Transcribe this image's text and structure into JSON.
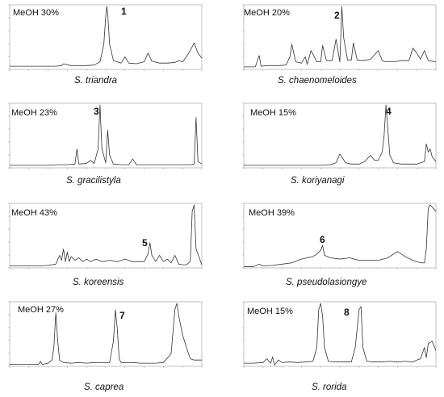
{
  "chart_data": [
    {
      "type": "line",
      "method_label": "MeOH 30%",
      "peak_label": "1",
      "peak_label_x": 0.5,
      "species": "S. triandra",
      "x": [
        0,
        0.04,
        0.08,
        0.12,
        0.16,
        0.2,
        0.24,
        0.27,
        0.28,
        0.32,
        0.36,
        0.4,
        0.44,
        0.47,
        0.49,
        0.5,
        0.505,
        0.51,
        0.52,
        0.54,
        0.58,
        0.6,
        0.62,
        0.66,
        0.7,
        0.72,
        0.74,
        0.78,
        0.82,
        0.86,
        0.88,
        0.9,
        0.92,
        0.94,
        0.96,
        0.98,
        1.0
      ],
      "y": [
        0.05,
        0.05,
        0.05,
        0.05,
        0.05,
        0.05,
        0.05,
        0.06,
        0.09,
        0.06,
        0.06,
        0.06,
        0.07,
        0.12,
        0.4,
        0.85,
        1.0,
        0.9,
        0.4,
        0.14,
        0.1,
        0.2,
        0.1,
        0.09,
        0.12,
        0.26,
        0.13,
        0.1,
        0.1,
        0.11,
        0.14,
        0.12,
        0.2,
        0.3,
        0.42,
        0.26,
        0.18
      ]
    },
    {
      "type": "line",
      "method_label": "MeOH 20%",
      "peak_label": "2",
      "peak_label_x": 0.51,
      "species": "S. chaenomeloides",
      "x": [
        0,
        0.06,
        0.08,
        0.09,
        0.12,
        0.18,
        0.22,
        0.24,
        0.25,
        0.27,
        0.3,
        0.32,
        0.33,
        0.35,
        0.38,
        0.4,
        0.41,
        0.43,
        0.46,
        0.48,
        0.5,
        0.51,
        0.52,
        0.54,
        0.56,
        0.57,
        0.59,
        0.62,
        0.66,
        0.7,
        0.72,
        0.74,
        0.78,
        0.82,
        0.86,
        0.88,
        0.9,
        0.92,
        0.94,
        0.96,
        1.0
      ],
      "y": [
        0.04,
        0.04,
        0.22,
        0.05,
        0.06,
        0.06,
        0.07,
        0.2,
        0.4,
        0.12,
        0.1,
        0.2,
        0.08,
        0.3,
        0.12,
        0.12,
        0.38,
        0.14,
        0.14,
        0.48,
        0.12,
        1.0,
        0.5,
        0.15,
        0.15,
        0.42,
        0.15,
        0.14,
        0.16,
        0.3,
        0.14,
        0.12,
        0.12,
        0.14,
        0.14,
        0.34,
        0.26,
        0.16,
        0.3,
        0.14,
        0.12
      ]
    },
    {
      "type": "line",
      "method_label": "MeOH 23%",
      "peak_label": "3",
      "peak_label_x": 0.47,
      "species": "S. gracilistyla",
      "x": [
        0,
        0.05,
        0.1,
        0.15,
        0.2,
        0.25,
        0.3,
        0.34,
        0.35,
        0.36,
        0.4,
        0.42,
        0.44,
        0.46,
        0.47,
        0.48,
        0.5,
        0.51,
        0.52,
        0.54,
        0.58,
        0.62,
        0.64,
        0.66,
        0.7,
        0.74,
        0.8,
        0.86,
        0.9,
        0.94,
        0.96,
        0.97,
        0.98,
        1.0
      ],
      "y": [
        0.04,
        0.04,
        0.04,
        0.04,
        0.04,
        0.05,
        0.05,
        0.06,
        0.3,
        0.06,
        0.07,
        0.12,
        0.07,
        0.3,
        1.0,
        0.3,
        0.08,
        0.6,
        0.2,
        0.06,
        0.05,
        0.05,
        0.14,
        0.05,
        0.05,
        0.05,
        0.05,
        0.05,
        0.05,
        0.05,
        0.06,
        0.8,
        0.1,
        0.06
      ]
    },
    {
      "type": "line",
      "method_label": "MeOH 15%",
      "peak_label": "4",
      "peak_label_x": 0.74,
      "species": "S. koriyanagi",
      "x": [
        0,
        0.1,
        0.2,
        0.3,
        0.4,
        0.45,
        0.48,
        0.5,
        0.53,
        0.56,
        0.6,
        0.63,
        0.66,
        0.68,
        0.7,
        0.72,
        0.73,
        0.74,
        0.75,
        0.76,
        0.78,
        0.82,
        0.86,
        0.9,
        0.94,
        0.95,
        0.96,
        0.97,
        0.98,
        1.0
      ],
      "y": [
        0.04,
        0.04,
        0.04,
        0.04,
        0.04,
        0.05,
        0.08,
        0.22,
        0.08,
        0.06,
        0.06,
        0.1,
        0.2,
        0.12,
        0.12,
        0.25,
        0.5,
        1.0,
        0.6,
        0.2,
        0.08,
        0.06,
        0.06,
        0.06,
        0.1,
        0.38,
        0.25,
        0.3,
        0.18,
        0.1
      ]
    },
    {
      "type": "line",
      "method_label": "MeOH 43%",
      "peak_label": "5",
      "peak_label_x": 0.73,
      "species": "S. koreensis",
      "x": [
        0,
        0.05,
        0.1,
        0.15,
        0.2,
        0.24,
        0.26,
        0.27,
        0.28,
        0.29,
        0.3,
        0.31,
        0.32,
        0.34,
        0.36,
        0.38,
        0.4,
        0.42,
        0.45,
        0.48,
        0.52,
        0.56,
        0.6,
        0.64,
        0.68,
        0.7,
        0.72,
        0.73,
        0.74,
        0.76,
        0.78,
        0.8,
        0.82,
        0.84,
        0.86,
        0.88,
        0.9,
        0.92,
        0.94,
        0.95,
        0.96,
        0.97,
        1.0
      ],
      "y": [
        0.03,
        0.03,
        0.03,
        0.03,
        0.04,
        0.06,
        0.2,
        0.12,
        0.3,
        0.1,
        0.25,
        0.1,
        0.18,
        0.12,
        0.16,
        0.1,
        0.14,
        0.1,
        0.14,
        0.1,
        0.12,
        0.1,
        0.14,
        0.1,
        0.1,
        0.1,
        0.22,
        0.4,
        0.2,
        0.1,
        0.2,
        0.1,
        0.14,
        0.08,
        0.2,
        0.06,
        0.05,
        0.05,
        0.1,
        0.9,
        1.0,
        0.3,
        0.05
      ]
    },
    {
      "type": "line",
      "method_label": "MeOH 39%",
      "peak_label": "6",
      "peak_label_x": 0.4,
      "species": "S. pseudolasiongye",
      "x": [
        0,
        0.05,
        0.08,
        0.1,
        0.15,
        0.2,
        0.25,
        0.3,
        0.33,
        0.36,
        0.38,
        0.4,
        0.41,
        0.42,
        0.45,
        0.5,
        0.55,
        0.6,
        0.65,
        0.7,
        0.75,
        0.8,
        0.84,
        0.88,
        0.9,
        0.92,
        0.94,
        0.95,
        0.96,
        0.97,
        1.0
      ],
      "y": [
        0.02,
        0.02,
        0.06,
        0.03,
        0.04,
        0.06,
        0.08,
        0.14,
        0.16,
        0.18,
        0.22,
        0.28,
        0.36,
        0.2,
        0.16,
        0.14,
        0.16,
        0.12,
        0.12,
        0.12,
        0.16,
        0.26,
        0.18,
        0.12,
        0.1,
        0.08,
        0.08,
        0.3,
        0.95,
        1.0,
        0.9
      ]
    },
    {
      "type": "line",
      "method_label": "MeOH 27%",
      "peak_label": "7",
      "peak_label_x": 0.56,
      "species": "S. caprea",
      "x": [
        0,
        0.05,
        0.1,
        0.15,
        0.16,
        0.17,
        0.2,
        0.22,
        0.23,
        0.24,
        0.25,
        0.26,
        0.28,
        0.32,
        0.36,
        0.4,
        0.44,
        0.48,
        0.52,
        0.54,
        0.55,
        0.56,
        0.57,
        0.58,
        0.6,
        0.64,
        0.68,
        0.72,
        0.76,
        0.8,
        0.84,
        0.86,
        0.87,
        0.88,
        0.9,
        0.92,
        0.94,
        0.96,
        1.0
      ],
      "y": [
        0.03,
        0.03,
        0.03,
        0.03,
        0.08,
        0.03,
        0.05,
        0.1,
        0.3,
        0.85,
        0.4,
        0.1,
        0.06,
        0.05,
        0.06,
        0.05,
        0.06,
        0.06,
        0.06,
        0.4,
        0.9,
        0.6,
        0.12,
        0.06,
        0.06,
        0.06,
        0.05,
        0.05,
        0.05,
        0.06,
        0.2,
        0.9,
        1.0,
        0.8,
        0.5,
        0.3,
        0.12,
        0.1,
        0.1
      ]
    },
    {
      "type": "line",
      "method_label": "MeOH 15%",
      "peak_label": "8",
      "peak_label_x": 0.4,
      "species": "S. rorida",
      "x": [
        0,
        0.05,
        0.1,
        0.12,
        0.14,
        0.15,
        0.16,
        0.18,
        0.2,
        0.24,
        0.28,
        0.32,
        0.36,
        0.38,
        0.39,
        0.4,
        0.41,
        0.42,
        0.44,
        0.48,
        0.52,
        0.56,
        0.58,
        0.6,
        0.61,
        0.62,
        0.64,
        0.68,
        0.72,
        0.76,
        0.8,
        0.84,
        0.88,
        0.9,
        0.92,
        0.94,
        0.95,
        0.96,
        0.98,
        1.0
      ],
      "y": [
        0.05,
        0.05,
        0.06,
        0.12,
        0.05,
        0.15,
        0.02,
        0.1,
        0.06,
        0.07,
        0.06,
        0.07,
        0.08,
        0.3,
        0.9,
        1.0,
        0.8,
        0.3,
        0.08,
        0.07,
        0.07,
        0.07,
        0.3,
        0.9,
        0.95,
        0.3,
        0.08,
        0.07,
        0.07,
        0.08,
        0.07,
        0.08,
        0.07,
        0.1,
        0.12,
        0.3,
        0.14,
        0.36,
        0.4,
        0.25
      ]
    }
  ]
}
